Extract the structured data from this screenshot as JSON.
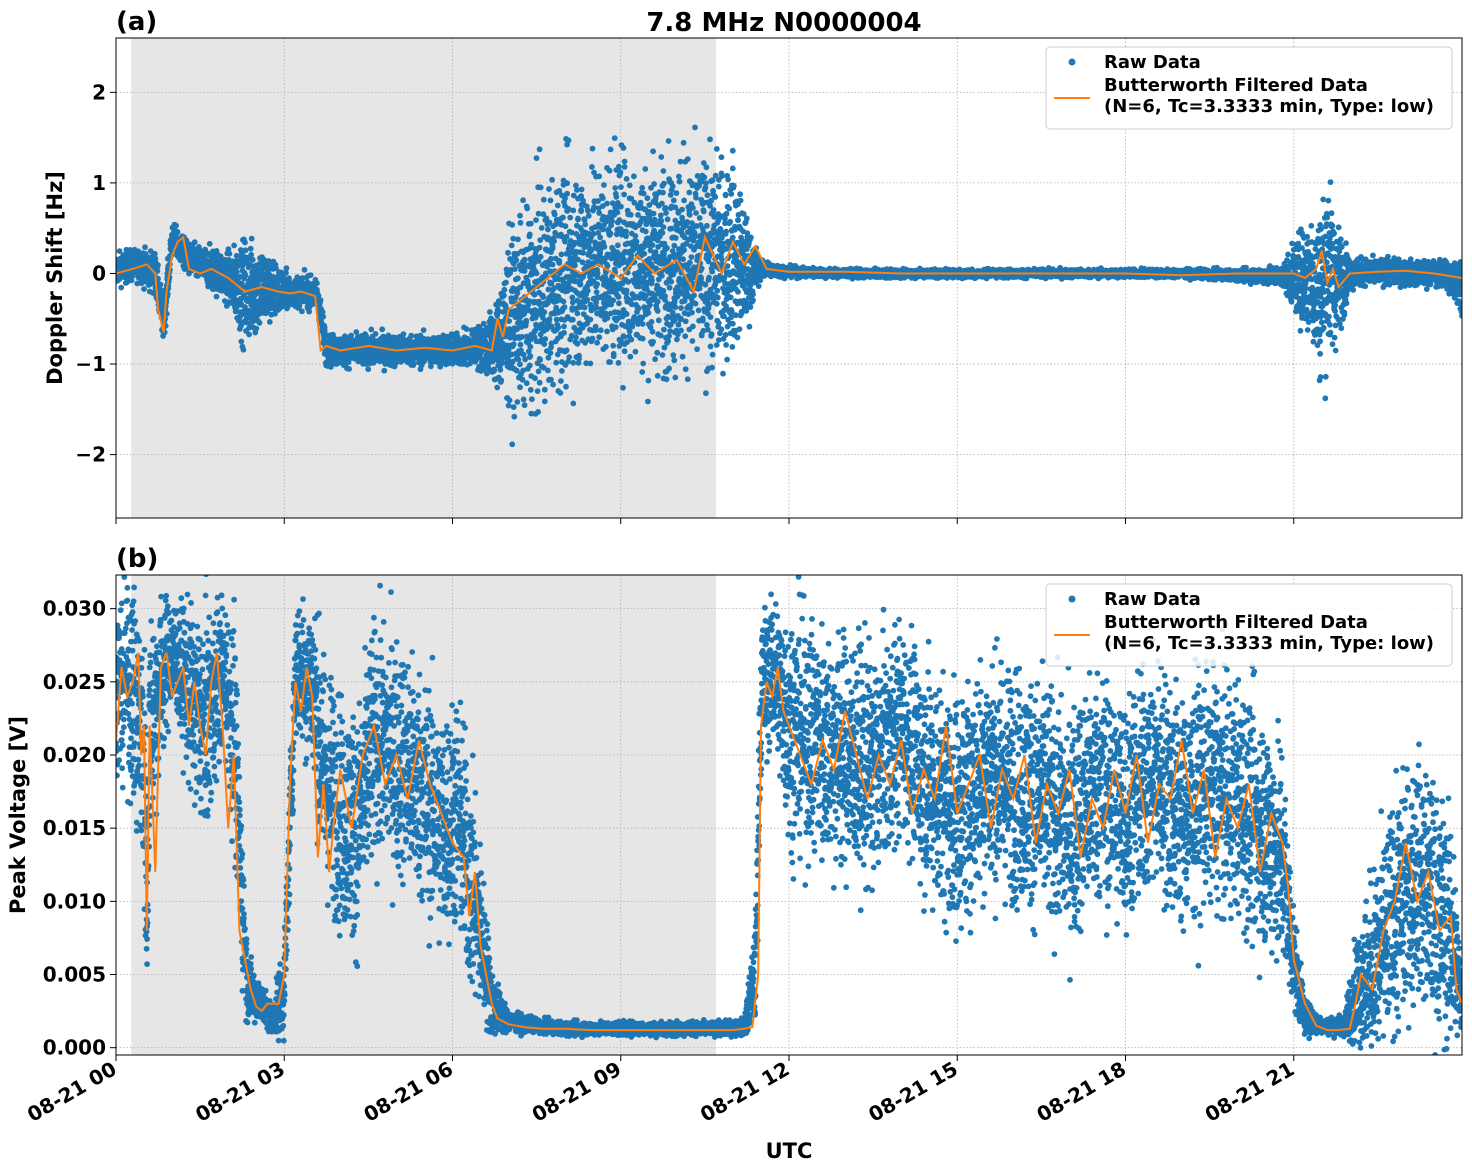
{
  "figure": {
    "title": "7.8 MHz N0000004",
    "xlabel": "UTC"
  },
  "chart_data": [
    {
      "panel_label": "(a)",
      "type": "scatter",
      "ylabel": "Doppler Shift [Hz]",
      "xlim": [
        0,
        24
      ],
      "ylim": [
        -2.7,
        2.6
      ],
      "yticks": [
        -2,
        -1,
        0,
        1,
        2
      ],
      "ytick_labels": [
        "−2",
        "−1",
        "0",
        "1",
        "2"
      ],
      "xticks": [
        0,
        3,
        6,
        9,
        12,
        15,
        18,
        21
      ],
      "xtick_labels": [
        "08-21 00",
        "08-21 03",
        "08-21 06",
        "08-21 09",
        "08-21 12",
        "08-21 15",
        "08-21 18",
        "08-21 21"
      ],
      "show_xtick_labels": false,
      "grid": true,
      "shaded_interval": [
        0.27,
        10.7
      ],
      "legend_position": "top-right",
      "legend": [
        "Raw Data",
        "Butterworth Filtered Data",
        "(N=6, Tc=3.3333 min, Type: low)"
      ],
      "series": [
        {
          "name": "Raw Data",
          "kind": "scatter",
          "color": "#1f77b4",
          "x": [
            0.0,
            0.4,
            0.7,
            0.85,
            1.0,
            1.3,
            1.7,
            2.0,
            2.3,
            2.6,
            2.9,
            3.1,
            3.4,
            3.6,
            3.75,
            4.0,
            4.5,
            5.0,
            5.5,
            6.0,
            6.4,
            6.75,
            7.0,
            7.5,
            8.0,
            8.5,
            9.0,
            9.5,
            10.0,
            10.5,
            11.0,
            11.3,
            11.5,
            12.0,
            13.0,
            14.0,
            15.0,
            16.0,
            17.0,
            18.0,
            19.0,
            20.0,
            20.8,
            21.3,
            21.5,
            21.6,
            21.75,
            22.0,
            22.3,
            22.7,
            23.2,
            23.6,
            24.0
          ],
          "y": [
            0.05,
            0.1,
            0.0,
            -0.55,
            0.4,
            0.15,
            0.05,
            -0.05,
            -0.2,
            -0.15,
            -0.2,
            -0.2,
            -0.2,
            -0.25,
            -0.85,
            -0.85,
            -0.85,
            -0.85,
            -0.85,
            -0.85,
            -0.82,
            -0.8,
            -0.55,
            -0.3,
            0.0,
            0.1,
            0.15,
            0.1,
            0.15,
            0.1,
            0.2,
            0.0,
            0.05,
            0.02,
            0.0,
            0.0,
            0.0,
            0.0,
            0.0,
            0.0,
            0.0,
            -0.02,
            -0.03,
            -0.05,
            -0.2,
            0.1,
            -0.1,
            0.0,
            0.02,
            0.02,
            0.0,
            0.0,
            -0.1
          ],
          "spread": [
            0.15,
            0.15,
            0.2,
            0.2,
            0.15,
            0.15,
            0.2,
            0.25,
            0.5,
            0.4,
            0.25,
            0.15,
            0.15,
            0.15,
            0.15,
            0.15,
            0.15,
            0.15,
            0.15,
            0.15,
            0.18,
            0.35,
            0.8,
            1.0,
            1.0,
            1.0,
            1.0,
            1.0,
            1.0,
            1.0,
            0.9,
            0.4,
            0.08,
            0.05,
            0.04,
            0.04,
            0.04,
            0.04,
            0.04,
            0.04,
            0.04,
            0.05,
            0.1,
            0.6,
            0.9,
            0.9,
            0.6,
            0.15,
            0.12,
            0.12,
            0.12,
            0.12,
            0.25
          ]
        },
        {
          "name": "Butterworth Filtered Data",
          "kind": "line",
          "color": "#ff7f0e",
          "x": [
            0.0,
            0.3,
            0.55,
            0.7,
            0.75,
            0.85,
            0.9,
            1.0,
            1.1,
            1.2,
            1.3,
            1.5,
            1.7,
            2.0,
            2.3,
            2.6,
            2.9,
            3.1,
            3.3,
            3.55,
            3.65,
            3.75,
            4.0,
            4.5,
            5.0,
            5.5,
            6.0,
            6.4,
            6.7,
            6.8,
            6.9,
            7.0,
            7.3,
            7.6,
            8.0,
            8.3,
            8.6,
            9.0,
            9.3,
            9.6,
            10.0,
            10.3,
            10.5,
            10.8,
            11.0,
            11.2,
            11.4,
            11.6,
            12.0,
            13.0,
            14.0,
            15.0,
            16.0,
            17.0,
            18.0,
            19.0,
            20.0,
            21.0,
            21.2,
            21.4,
            21.5,
            21.6,
            21.7,
            21.8,
            22.0,
            22.5,
            23.0,
            23.5,
            24.0
          ],
          "y": [
            0.0,
            0.05,
            0.1,
            0.0,
            -0.4,
            -0.65,
            -0.2,
            0.2,
            0.35,
            0.4,
            0.05,
            0.0,
            0.05,
            -0.05,
            -0.2,
            -0.15,
            -0.2,
            -0.22,
            -0.2,
            -0.25,
            -0.85,
            -0.8,
            -0.85,
            -0.8,
            -0.85,
            -0.82,
            -0.85,
            -0.8,
            -0.85,
            -0.5,
            -0.7,
            -0.4,
            -0.25,
            -0.1,
            0.1,
            0.0,
            0.1,
            -0.05,
            0.2,
            0.0,
            0.15,
            -0.2,
            0.4,
            0.0,
            0.35,
            0.1,
            0.3,
            0.05,
            0.02,
            0.02,
            0.0,
            0.0,
            0.0,
            0.0,
            0.0,
            -0.02,
            0.0,
            0.0,
            -0.05,
            0.05,
            0.25,
            -0.1,
            0.05,
            -0.15,
            0.0,
            0.02,
            0.03,
            0.0,
            -0.05
          ]
        }
      ]
    },
    {
      "panel_label": "(b)",
      "type": "scatter",
      "ylabel": "Peak Voltage [V]",
      "xlim": [
        0,
        24
      ],
      "ylim": [
        -0.0005,
        0.0323
      ],
      "yticks": [
        0.0,
        0.005,
        0.01,
        0.015,
        0.02,
        0.025,
        0.03
      ],
      "ytick_labels": [
        "0.000",
        "0.005",
        "0.010",
        "0.015",
        "0.020",
        "0.025",
        "0.030"
      ],
      "xticks": [
        0,
        3,
        6,
        9,
        12,
        15,
        18,
        21
      ],
      "xtick_labels": [
        "08-21 00",
        "08-21 03",
        "08-21 06",
        "08-21 09",
        "08-21 12",
        "08-21 15",
        "08-21 18",
        "08-21 21"
      ],
      "show_xtick_labels": true,
      "grid": true,
      "shaded_interval": [
        0.27,
        10.7
      ],
      "legend_position": "top-right",
      "legend": [
        "Raw Data",
        "Butterworth Filtered Data",
        "(N=6, Tc=3.3333 min, Type: low)"
      ],
      "series": [
        {
          "name": "Raw Data",
          "kind": "scatter",
          "color": "#1f77b4",
          "x": [
            0.0,
            0.2,
            0.35,
            0.5,
            0.55,
            0.6,
            0.8,
            1.0,
            1.3,
            1.6,
            1.9,
            2.1,
            2.25,
            2.35,
            2.6,
            2.8,
            3.0,
            3.2,
            3.5,
            3.7,
            4.0,
            4.3,
            4.6,
            5.0,
            5.4,
            5.8,
            6.1,
            6.3,
            6.5,
            6.7,
            7.0,
            7.5,
            8.0,
            9.0,
            10.0,
            10.7,
            11.2,
            11.4,
            11.5,
            11.7,
            12.0,
            12.5,
            13.0,
            13.5,
            14.0,
            14.5,
            15.0,
            15.5,
            16.0,
            16.5,
            17.0,
            17.5,
            18.0,
            18.5,
            19.0,
            19.5,
            20.0,
            20.4,
            20.8,
            21.0,
            21.2,
            21.5,
            21.9,
            22.1,
            22.4,
            22.8,
            23.2,
            23.6,
            23.8,
            24.0
          ],
          "y": [
            0.024,
            0.026,
            0.023,
            0.02,
            0.009,
            0.022,
            0.025,
            0.027,
            0.024,
            0.022,
            0.026,
            0.022,
            0.01,
            0.004,
            0.003,
            0.002,
            0.004,
            0.026,
            0.025,
            0.019,
            0.016,
            0.015,
            0.021,
            0.02,
            0.018,
            0.015,
            0.016,
            0.012,
            0.008,
            0.003,
            0.0018,
            0.0015,
            0.0013,
            0.0013,
            0.0013,
            0.0013,
            0.0014,
            0.005,
            0.024,
            0.026,
            0.022,
            0.021,
            0.02,
            0.019,
            0.022,
            0.018,
            0.016,
            0.019,
            0.018,
            0.017,
            0.015,
            0.018,
            0.016,
            0.019,
            0.016,
            0.018,
            0.017,
            0.015,
            0.013,
            0.006,
            0.002,
            0.0015,
            0.0015,
            0.004,
            0.005,
            0.009,
            0.012,
            0.009,
            0.008,
            0.003
          ],
          "spread": [
            0.006,
            0.006,
            0.007,
            0.008,
            0.006,
            0.007,
            0.005,
            0.003,
            0.005,
            0.007,
            0.004,
            0.007,
            0.005,
            0.002,
            0.001,
            0.001,
            0.003,
            0.004,
            0.005,
            0.007,
            0.007,
            0.007,
            0.007,
            0.007,
            0.007,
            0.007,
            0.007,
            0.007,
            0.005,
            0.002,
            0.0006,
            0.0004,
            0.0004,
            0.0004,
            0.0004,
            0.0004,
            0.0005,
            0.003,
            0.005,
            0.004,
            0.007,
            0.007,
            0.007,
            0.007,
            0.006,
            0.007,
            0.007,
            0.007,
            0.007,
            0.007,
            0.007,
            0.007,
            0.007,
            0.007,
            0.007,
            0.007,
            0.007,
            0.007,
            0.007,
            0.003,
            0.001,
            0.0005,
            0.0006,
            0.003,
            0.006,
            0.007,
            0.007,
            0.007,
            0.007,
            0.002
          ]
        },
        {
          "name": "Butterworth Filtered Data",
          "kind": "line",
          "color": "#ff7f0e",
          "x": [
            0.0,
            0.1,
            0.2,
            0.3,
            0.4,
            0.45,
            0.5,
            0.55,
            0.6,
            0.7,
            0.8,
            0.9,
            1.0,
            1.1,
            1.2,
            1.3,
            1.4,
            1.5,
            1.6,
            1.7,
            1.8,
            1.9,
            2.0,
            2.1,
            2.2,
            2.3,
            2.4,
            2.5,
            2.6,
            2.7,
            2.8,
            2.9,
            3.0,
            3.1,
            3.2,
            3.3,
            3.4,
            3.5,
            3.6,
            3.7,
            3.8,
            3.9,
            4.0,
            4.2,
            4.4,
            4.6,
            4.8,
            5.0,
            5.2,
            5.4,
            5.6,
            5.8,
            6.0,
            6.2,
            6.3,
            6.4,
            6.5,
            6.6,
            6.7,
            6.8,
            7.0,
            7.3,
            7.6,
            8.0,
            8.5,
            9.0,
            9.5,
            10.0,
            10.5,
            11.0,
            11.2,
            11.35,
            11.45,
            11.5,
            11.6,
            11.7,
            11.8,
            11.9,
            12.0,
            12.2,
            12.4,
            12.6,
            12.8,
            13.0,
            13.2,
            13.4,
            13.6,
            13.8,
            14.0,
            14.2,
            14.4,
            14.6,
            14.8,
            15.0,
            15.2,
            15.4,
            15.6,
            15.8,
            16.0,
            16.2,
            16.4,
            16.6,
            16.8,
            17.0,
            17.2,
            17.4,
            17.6,
            17.8,
            18.0,
            18.2,
            18.4,
            18.6,
            18.8,
            19.0,
            19.2,
            19.4,
            19.6,
            19.8,
            20.0,
            20.2,
            20.4,
            20.6,
            20.8,
            20.9,
            21.0,
            21.2,
            21.4,
            21.6,
            21.8,
            22.0,
            22.1,
            22.2,
            22.4,
            22.6,
            22.8,
            23.0,
            23.2,
            23.4,
            23.6,
            23.8,
            23.9,
            24.0
          ],
          "y": [
            0.021,
            0.026,
            0.024,
            0.025,
            0.027,
            0.02,
            0.022,
            0.008,
            0.022,
            0.012,
            0.026,
            0.027,
            0.024,
            0.025,
            0.026,
            0.022,
            0.025,
            0.022,
            0.02,
            0.025,
            0.027,
            0.022,
            0.015,
            0.02,
            0.008,
            0.006,
            0.004,
            0.0028,
            0.0025,
            0.003,
            0.003,
            0.003,
            0.005,
            0.018,
            0.025,
            0.023,
            0.026,
            0.024,
            0.013,
            0.018,
            0.012,
            0.016,
            0.019,
            0.015,
            0.02,
            0.022,
            0.018,
            0.02,
            0.017,
            0.021,
            0.018,
            0.016,
            0.014,
            0.013,
            0.009,
            0.012,
            0.007,
            0.005,
            0.003,
            0.002,
            0.0016,
            0.0014,
            0.0013,
            0.0013,
            0.0012,
            0.0012,
            0.0012,
            0.0012,
            0.0012,
            0.0012,
            0.0013,
            0.0014,
            0.005,
            0.022,
            0.025,
            0.024,
            0.026,
            0.023,
            0.022,
            0.02,
            0.018,
            0.021,
            0.019,
            0.023,
            0.02,
            0.017,
            0.02,
            0.018,
            0.021,
            0.016,
            0.019,
            0.017,
            0.022,
            0.016,
            0.018,
            0.02,
            0.015,
            0.019,
            0.017,
            0.02,
            0.014,
            0.018,
            0.016,
            0.019,
            0.013,
            0.017,
            0.015,
            0.019,
            0.016,
            0.02,
            0.014,
            0.018,
            0.017,
            0.021,
            0.016,
            0.019,
            0.013,
            0.017,
            0.015,
            0.018,
            0.012,
            0.016,
            0.014,
            0.011,
            0.006,
            0.003,
            0.0015,
            0.0012,
            0.0012,
            0.0013,
            0.003,
            0.005,
            0.004,
            0.008,
            0.01,
            0.014,
            0.01,
            0.012,
            0.008,
            0.009,
            0.004,
            0.003
          ]
        }
      ]
    }
  ]
}
